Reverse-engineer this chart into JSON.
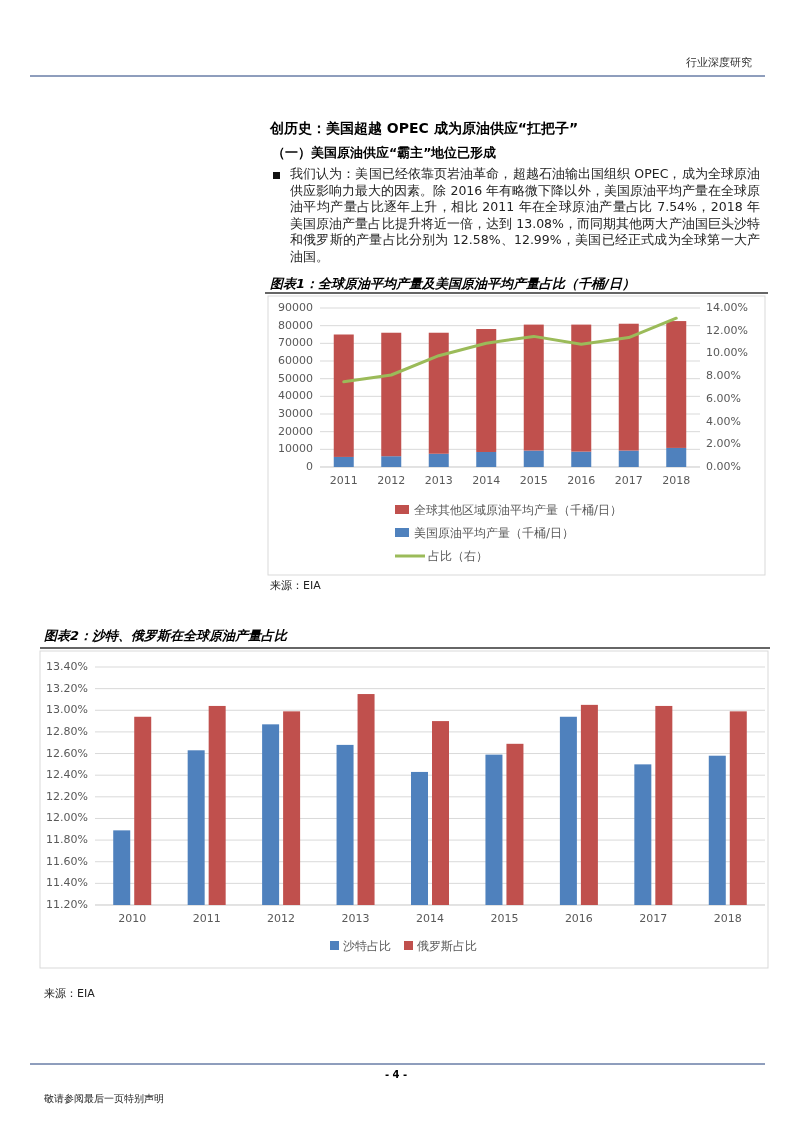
{
  "chart_data": [
    {
      "type": "bar",
      "title": "图表1：全球原油平均产量及美国原油平均产量占比（千桶/日）",
      "categories": [
        "2011",
        "2012",
        "2013",
        "2014",
        "2015",
        "2016",
        "2017",
        "2018"
      ],
      "stacked": true,
      "series": [
        {
          "name": "美国原油平均产量（千桶/日）",
          "color": "#4f81bd",
          "values": [
            5700,
            6100,
            7500,
            8500,
            9300,
            8700,
            9300,
            10800
          ]
        },
        {
          "name": "全球其他区域原油平均产量（千桶/日）",
          "color": "#c0504d",
          "values": [
            69300,
            69900,
            68500,
            69600,
            71300,
            71900,
            71800,
            71800
          ]
        },
        {
          "name": "占比（右）",
          "type": "line",
          "axis": "y2",
          "color": "#9bbb59",
          "values": [
            7.5,
            8.1,
            9.8,
            10.9,
            11.5,
            10.8,
            11.4,
            13.1
          ]
        }
      ],
      "ylim": [
        0,
        90000
      ],
      "yticks": [
        0,
        10000,
        20000,
        30000,
        40000,
        50000,
        60000,
        70000,
        80000,
        90000
      ],
      "y2lim": [
        0,
        14
      ],
      "y2ticks": [
        {
          "value": 0,
          "label": "0.00%"
        },
        {
          "value": 2,
          "label": "2.00%"
        },
        {
          "value": 4,
          "label": "4.00%"
        },
        {
          "value": 6,
          "label": "6.00%"
        },
        {
          "value": 8,
          "label": "8.00%"
        },
        {
          "value": 10,
          "label": "10.00%"
        },
        {
          "value": 12,
          "label": "12.00%"
        },
        {
          "value": 14,
          "label": "14.00%"
        }
      ],
      "grid": "y",
      "legend": "bottom",
      "annotations": [
        "行业深度研究",
        "创历史：美国超越 OPEC 成为原油供应“扛把子”",
        "（一）美国原油供应“霸主”地位已形成",
        "我们认为：美国已经依靠页岩油革命，超越石油输出国组织 OPEC，成为全球原油供应影响力最大的因素。除 2016 年有略微下降以外，美国原油平均产量在全球原油平均产量占比逐年上升，相比 2011 年在全球原油产量占比 7.54%，2018 年美国原油产量占比提升将近一倍，达到 13.08%，而同期其他两大产油国巨头沙特和俄罗斯的产量占比分别为 12.58%、12.99%，美国已经正式成为全球第一大产油国。",
        "来源：EIA"
      ]
    },
    {
      "type": "bar",
      "title": "图表2：沙特、俄罗斯在全球原油产量占比",
      "categories": [
        "2010",
        "2011",
        "2012",
        "2013",
        "2014",
        "2015",
        "2016",
        "2017",
        "2018"
      ],
      "series": [
        {
          "name": "沙特占比",
          "color": "#4f81bd",
          "values": [
            11.89,
            12.63,
            12.87,
            12.68,
            12.43,
            12.59,
            12.94,
            12.5,
            12.58
          ]
        },
        {
          "name": "俄罗斯占比",
          "color": "#c0504d",
          "values": [
            12.94,
            13.04,
            12.99,
            13.15,
            12.9,
            12.69,
            13.05,
            13.04,
            12.99
          ]
        }
      ],
      "ylim": [
        11.2,
        13.4
      ],
      "yticks": [
        {
          "value": 11.2,
          "label": "11.20%"
        },
        {
          "value": 11.4,
          "label": "11.40%"
        },
        {
          "value": 11.6,
          "label": "11.60%"
        },
        {
          "value": 11.8,
          "label": "11.80%"
        },
        {
          "value": 12.0,
          "label": "12.00%"
        },
        {
          "value": 12.2,
          "label": "12.20%"
        },
        {
          "value": 12.4,
          "label": "12.40%"
        },
        {
          "value": 12.6,
          "label": "12.60%"
        },
        {
          "value": 12.8,
          "label": "12.80%"
        },
        {
          "value": 13.0,
          "label": "13.00%"
        },
        {
          "value": 13.2,
          "label": "13.20%"
        },
        {
          "value": 13.4,
          "label": "13.40%"
        }
      ],
      "grid": "y",
      "legend": "bottom",
      "annotations": [
        "来源：EIA",
        "- 4 -",
        "敬请参阅最后一页特别声明"
      ]
    }
  ]
}
